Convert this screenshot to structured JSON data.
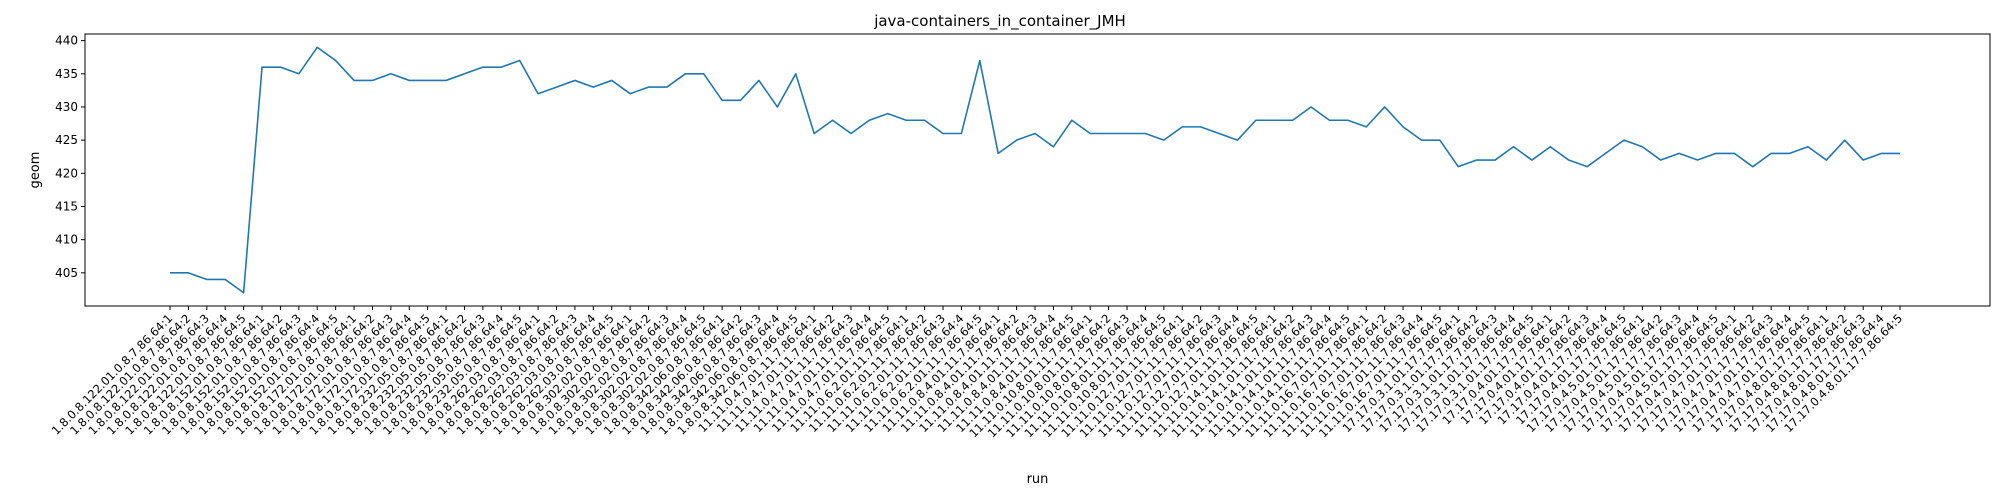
{
  "chart_data": {
    "type": "line",
    "title": "java-containers_in_container_JMH",
    "xlabel": "run",
    "ylabel": "geom",
    "ylim": [
      400,
      441
    ],
    "yticks": [
      405,
      410,
      415,
      420,
      425,
      430,
      435,
      440
    ],
    "grid": false,
    "legend": "none",
    "line_color": "#1f77b4",
    "categories": [
      "1.8.0.8.122.01.0.8.7.86.64:1",
      "1.8.0.8.122.01.0.8.7.86.64:2",
      "1.8.0.8.122.01.0.8.7.86.64:3",
      "1.8.0.8.122.01.0.8.7.86.64:4",
      "1.8.0.8.122.01.0.8.7.86.64:5",
      "1.8.0.8.152.01.0.8.7.86.64:1",
      "1.8.0.8.152.01.0.8.7.86.64:2",
      "1.8.0.8.152.01.0.8.7.86.64:3",
      "1.8.0.8.152.01.0.8.7.86.64:4",
      "1.8.0.8.152.01.0.8.7.86.64:5",
      "1.8.0.8.172.01.0.8.7.86.64:1",
      "1.8.0.8.172.01.0.8.7.86.64:2",
      "1.8.0.8.172.01.0.8.7.86.64:3",
      "1.8.0.8.172.01.0.8.7.86.64:4",
      "1.8.0.8.172.01.0.8.7.86.64:5",
      "1.8.0.8.232.05.0.8.7.86.64:1",
      "1.8.0.8.232.05.0.8.7.86.64:2",
      "1.8.0.8.232.05.0.8.7.86.64:3",
      "1.8.0.8.232.05.0.8.7.86.64:4",
      "1.8.0.8.232.05.0.8.7.86.64:5",
      "1.8.0.8.262.03.0.8.7.86.64:1",
      "1.8.0.8.262.03.0.8.7.86.64:2",
      "1.8.0.8.262.03.0.8.7.86.64:3",
      "1.8.0.8.262.03.0.8.7.86.64:4",
      "1.8.0.8.262.03.0.8.7.86.64:5",
      "1.8.0.8.302.02.0.8.7.86.64:1",
      "1.8.0.8.302.02.0.8.7.86.64:2",
      "1.8.0.8.302.02.0.8.7.86.64:3",
      "1.8.0.8.302.02.0.8.7.86.64:4",
      "1.8.0.8.302.02.0.8.7.86.64:5",
      "1.8.0.8.342.06.0.8.7.86.64:1",
      "1.8.0.8.342.06.0.8.7.86.64:2",
      "1.8.0.8.342.06.0.8.7.86.64:3",
      "1.8.0.8.342.06.0.8.7.86.64:4",
      "1.8.0.8.342.06.0.8.7.86.64:5",
      "11.11.0.4.7.01.11.7.86.64:1",
      "11.11.0.4.7.01.11.7.86.64:2",
      "11.11.0.4.7.01.11.7.86.64:3",
      "11.11.0.4.7.01.11.7.86.64:4",
      "11.11.0.4.7.01.11.7.86.64:5",
      "11.11.0.6.2.01.11.7.86.64:1",
      "11.11.0.6.2.01.11.7.86.64:2",
      "11.11.0.6.2.01.11.7.86.64:3",
      "11.11.0.6.2.01.11.7.86.64:4",
      "11.11.0.6.2.01.11.7.86.64:5",
      "11.11.0.8.4.01.11.7.86.64:1",
      "11.11.0.8.4.01.11.7.86.64:2",
      "11.11.0.8.4.01.11.7.86.64:3",
      "11.11.0.8.4.01.11.7.86.64:4",
      "11.11.0.8.4.01.11.7.86.64:5",
      "11.11.0.10.8.01.11.7.86.64:1",
      "11.11.0.10.8.01.11.7.86.64:2",
      "11.11.0.10.8.01.11.7.86.64:3",
      "11.11.0.10.8.01.11.7.86.64:4",
      "11.11.0.10.8.01.11.7.86.64:5",
      "11.11.0.12.7.01.11.7.86.64:1",
      "11.11.0.12.7.01.11.7.86.64:2",
      "11.11.0.12.7.01.11.7.86.64:3",
      "11.11.0.12.7.01.11.7.86.64:4",
      "11.11.0.12.7.01.11.7.86.64:5",
      "11.11.0.14.1.01.11.7.86.64:1",
      "11.11.0.14.1.01.11.7.86.64:2",
      "11.11.0.14.1.01.11.7.86.64:3",
      "11.11.0.14.1.01.11.7.86.64:4",
      "11.11.0.14.1.01.11.7.86.64:5",
      "11.11.0.16.7.01.11.7.86.64:1",
      "11.11.0.16.7.01.11.7.86.64:2",
      "11.11.0.16.7.01.11.7.86.64:3",
      "11.11.0.16.7.01.11.7.86.64:4",
      "11.11.0.16.7.01.11.7.86.64:5",
      "17.17.0.3.1.01.17.7.86.64:1",
      "17.17.0.3.1.01.17.7.86.64:2",
      "17.17.0.3.1.01.17.7.86.64:3",
      "17.17.0.3.1.01.17.7.86.64:4",
      "17.17.0.3.1.01.17.7.86.64:5",
      "17.17.0.4.01.17.7.86.64:1",
      "17.17.0.4.01.17.7.86.64:2",
      "17.17.0.4.01.17.7.86.64:3",
      "17.17.0.4.01.17.7.86.64:4",
      "17.17.0.4.01.17.7.86.64:5",
      "17.17.0.4.5.01.17.7.86.64:1",
      "17.17.0.4.5.01.17.7.86.64:2",
      "17.17.0.4.5.01.17.7.86.64:3",
      "17.17.0.4.5.01.17.7.86.64:4",
      "17.17.0.4.5.01.17.7.86.64:5",
      "17.17.0.4.7.01.17.7.86.64:1",
      "17.17.0.4.7.01.17.7.86.64:2",
      "17.17.0.4.7.01.17.7.86.64:3",
      "17.17.0.4.7.01.17.7.86.64:4",
      "17.17.0.4.7.01.17.7.86.64:5",
      "17.17.0.4.8.01.17.7.86.64:1",
      "17.17.0.4.8.01.17.7.86.64:2",
      "17.17.0.4.8.01.17.7.86.64:3",
      "17.17.0.4.8.01.17.7.86.64:4",
      "17.17.0.4.8.01.17.7.86.64:5"
    ],
    "values": [
      405,
      405,
      404,
      404,
      402,
      436,
      436,
      435,
      439,
      437,
      434,
      434,
      435,
      434,
      434,
      434,
      435,
      436,
      436,
      437,
      432,
      433,
      434,
      433,
      434,
      432,
      433,
      433,
      435,
      435,
      431,
      431,
      434,
      430,
      435,
      426,
      428,
      426,
      428,
      429,
      428,
      428,
      426,
      426,
      437,
      423,
      425,
      426,
      424,
      428,
      426,
      426,
      426,
      426,
      425,
      427,
      427,
      426,
      425,
      428,
      428,
      428,
      430,
      428,
      428,
      427,
      430,
      427,
      425,
      425,
      421,
      422,
      422,
      424,
      422,
      424,
      422,
      421,
      423,
      425,
      424,
      422,
      423,
      422,
      423,
      423,
      421,
      423,
      423,
      424,
      422,
      425,
      422,
      423,
      423
    ]
  }
}
